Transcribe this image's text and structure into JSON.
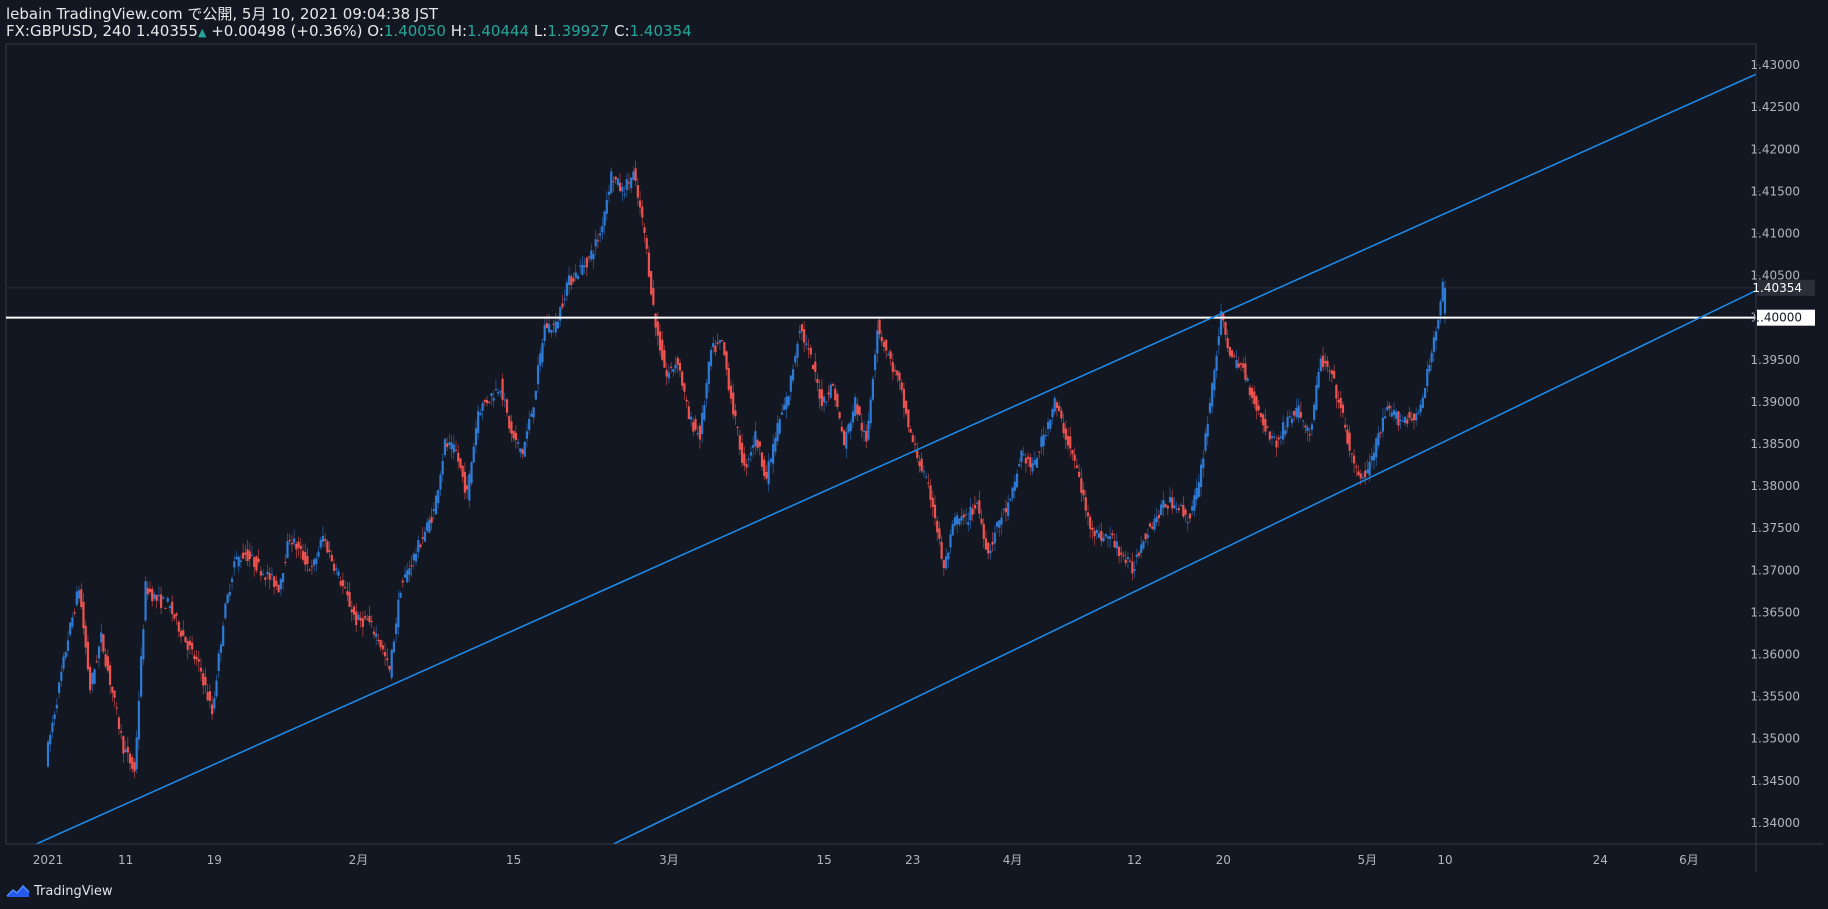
{
  "header": {
    "line1": "lebain TradingView.com で公開, 5月 10, 2021 09:04:38 JST",
    "symbol_tf": "FX:GBPUSD, 240",
    "last": "1.40355",
    "change": "+0.00498 (+0.36%)",
    "o_label": "O:",
    "o_value": "1.40050",
    "h_label": "H:",
    "h_value": "1.40444",
    "l_label": "L:",
    "l_value": "1.39927",
    "c_label": "C:",
    "c_value": "1.40354"
  },
  "footer": {
    "brand": "TradingView",
    "logo_icon": "tradingview-logo-icon"
  },
  "colors": {
    "background": "#131722",
    "up": "#2e7bd6",
    "down": "#ef5350",
    "channel": "#1e88e5",
    "level": "#ffffff",
    "axis_text": "#b2b5be",
    "header_values": "#26a69a"
  },
  "chart_data": {
    "type": "candlestick",
    "symbol": "FX:GBPUSD",
    "timeframe": "240",
    "ylim": [
      1.3375,
      1.4325
    ],
    "y_ticks": [
      "1.34000",
      "1.34500",
      "1.35000",
      "1.35500",
      "1.36000",
      "1.36500",
      "1.37000",
      "1.37500",
      "1.38000",
      "1.38500",
      "1.39000",
      "1.39500",
      "1.40000",
      "1.40500",
      "1.41000",
      "1.41500",
      "1.42000",
      "1.42500",
      "1.43000"
    ],
    "x_labels": [
      {
        "label": "2021",
        "date": "2021-01-04"
      },
      {
        "label": "11",
        "date": "2021-01-11"
      },
      {
        "label": "19",
        "date": "2021-01-19"
      },
      {
        "label": "2月",
        "date": "2021-02-01"
      },
      {
        "label": "15",
        "date": "2021-02-15"
      },
      {
        "label": "3月",
        "date": "2021-03-01"
      },
      {
        "label": "15",
        "date": "2021-03-15"
      },
      {
        "label": "23",
        "date": "2021-03-23"
      },
      {
        "label": "4月",
        "date": "2021-04-01"
      },
      {
        "label": "12",
        "date": "2021-04-12"
      },
      {
        "label": "20",
        "date": "2021-04-20"
      },
      {
        "label": "5月",
        "date": "2021-05-03"
      },
      {
        "label": "10",
        "date": "2021-05-10"
      },
      {
        "label": "24",
        "date": "2021-05-24"
      },
      {
        "label": "6月",
        "date": "2021-06-01"
      }
    ],
    "price_path": [
      [
        "2021-01-04",
        1.3475
      ],
      [
        "2021-01-06",
        1.362
      ],
      [
        "2021-01-07",
        1.368
      ],
      [
        "2021-01-08",
        1.356
      ],
      [
        "2021-01-09",
        1.362
      ],
      [
        "2021-01-11",
        1.349
      ],
      [
        "2021-01-12",
        1.346
      ],
      [
        "2021-01-13",
        1.368
      ],
      [
        "2021-01-14",
        1.3665
      ],
      [
        "2021-01-15",
        1.366
      ],
      [
        "2021-01-18",
        1.358
      ],
      [
        "2021-01-19",
        1.353
      ],
      [
        "2021-01-20",
        1.364
      ],
      [
        "2021-01-21",
        1.371
      ],
      [
        "2021-01-22",
        1.372
      ],
      [
        "2021-01-25",
        1.368
      ],
      [
        "2021-01-26",
        1.374
      ],
      [
        "2021-01-28",
        1.37
      ],
      [
        "2021-01-29",
        1.374
      ],
      [
        "2021-02-01",
        1.364
      ],
      [
        "2021-02-02",
        1.364
      ],
      [
        "2021-02-03",
        1.362
      ],
      [
        "2021-02-04",
        1.358
      ],
      [
        "2021-02-05",
        1.368
      ],
      [
        "2021-02-08",
        1.377
      ],
      [
        "2021-02-09",
        1.385
      ],
      [
        "2021-02-10",
        1.384
      ],
      [
        "2021-02-11",
        1.379
      ],
      [
        "2021-02-12",
        1.389
      ],
      [
        "2021-02-14",
        1.392
      ],
      [
        "2021-02-15",
        1.386
      ],
      [
        "2021-02-16",
        1.384
      ],
      [
        "2021-02-17",
        1.39
      ],
      [
        "2021-02-18",
        1.399
      ],
      [
        "2021-02-19",
        1.399
      ],
      [
        "2021-02-20",
        1.404
      ],
      [
        "2021-02-22",
        1.407
      ],
      [
        "2021-02-23",
        1.41
      ],
      [
        "2021-02-24",
        1.417
      ],
      [
        "2021-02-25",
        1.415
      ],
      [
        "2021-02-26",
        1.417
      ],
      [
        "2021-02-27",
        1.41
      ],
      [
        "2021-02-28",
        1.399
      ],
      [
        "2021-03-01",
        1.393
      ],
      [
        "2021-03-02",
        1.395
      ],
      [
        "2021-03-03",
        1.388
      ],
      [
        "2021-03-04",
        1.386
      ],
      [
        "2021-03-05",
        1.396
      ],
      [
        "2021-03-06",
        1.397
      ],
      [
        "2021-03-07",
        1.389
      ],
      [
        "2021-03-08",
        1.382
      ],
      [
        "2021-03-09",
        1.386
      ],
      [
        "2021-03-10",
        1.381
      ],
      [
        "2021-03-11",
        1.387
      ],
      [
        "2021-03-12",
        1.391
      ],
      [
        "2021-03-13",
        1.399
      ],
      [
        "2021-03-14",
        1.395
      ],
      [
        "2021-03-15",
        1.39
      ],
      [
        "2021-03-16",
        1.392
      ],
      [
        "2021-03-17",
        1.385
      ],
      [
        "2021-03-18",
        1.39
      ],
      [
        "2021-03-19",
        1.385
      ],
      [
        "2021-03-20",
        1.399
      ],
      [
        "2021-03-22",
        1.392
      ],
      [
        "2021-03-23",
        1.386
      ],
      [
        "2021-03-24",
        1.382
      ],
      [
        "2021-03-25",
        1.378
      ],
      [
        "2021-03-26",
        1.37
      ],
      [
        "2021-03-27",
        1.376
      ],
      [
        "2021-03-28",
        1.376
      ],
      [
        "2021-03-29",
        1.378
      ],
      [
        "2021-03-30",
        1.372
      ],
      [
        "2021-03-31",
        1.376
      ],
      [
        "2021-04-01",
        1.378
      ],
      [
        "2021-04-02",
        1.384
      ],
      [
        "2021-04-03",
        1.382
      ],
      [
        "2021-04-05",
        1.39
      ],
      [
        "2021-04-06",
        1.386
      ],
      [
        "2021-04-07",
        1.382
      ],
      [
        "2021-04-08",
        1.376
      ],
      [
        "2021-04-09",
        1.374
      ],
      [
        "2021-04-10",
        1.374
      ],
      [
        "2021-04-11",
        1.372
      ],
      [
        "2021-04-12",
        1.37
      ],
      [
        "2021-04-13",
        1.374
      ],
      [
        "2021-04-14",
        1.376
      ],
      [
        "2021-04-15",
        1.378
      ],
      [
        "2021-04-16",
        1.378
      ],
      [
        "2021-04-17",
        1.376
      ],
      [
        "2021-04-18",
        1.38
      ],
      [
        "2021-04-19",
        1.39
      ],
      [
        "2021-04-20",
        1.4
      ],
      [
        "2021-04-21",
        1.395
      ],
      [
        "2021-04-22",
        1.394
      ],
      [
        "2021-04-23",
        1.39
      ],
      [
        "2021-04-24",
        1.387
      ],
      [
        "2021-04-25",
        1.385
      ],
      [
        "2021-04-26",
        1.388
      ],
      [
        "2021-04-27",
        1.389
      ],
      [
        "2021-04-28",
        1.386
      ],
      [
        "2021-04-29",
        1.395
      ],
      [
        "2021-04-30",
        1.393
      ],
      [
        "2021-05-01",
        1.388
      ],
      [
        "2021-05-02",
        1.382
      ],
      [
        "2021-05-03",
        1.381
      ],
      [
        "2021-05-04",
        1.385
      ],
      [
        "2021-05-05",
        1.389
      ],
      [
        "2021-05-06",
        1.388
      ],
      [
        "2021-05-07",
        1.388
      ],
      [
        "2021-05-08",
        1.389
      ],
      [
        "2021-05-09",
        1.396
      ],
      [
        "2021-05-10",
        1.4035
      ]
    ],
    "candles": [],
    "last_price": 1.40354,
    "price_labels": [
      {
        "text": "1.40354",
        "kind": "last"
      },
      {
        "text": "1.40000",
        "kind": "level"
      }
    ],
    "horizontal_level": 1.4,
    "channel": {
      "upper": [
        [
          "2021-03-22",
          1.3835
        ],
        [
          "2021-04-19",
          1.4
        ]
      ],
      "lower": [
        [
          "2021-02-24",
          1.3375
        ],
        [
          "2021-06-02",
          1.4
        ]
      ]
    },
    "grid": false,
    "legend": false
  }
}
